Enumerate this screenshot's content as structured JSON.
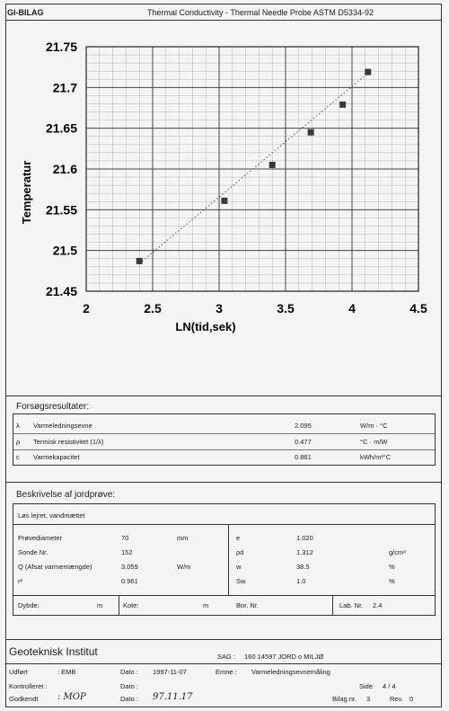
{
  "header": {
    "org": "GI-BILAG",
    "title": "Thermal Conductivity - Thermal Needle Probe ASTM D5334-92"
  },
  "chart_data": {
    "type": "scatter",
    "xlabel": "LN(tid,sek)",
    "ylabel": "Temperatur",
    "xlim": [
      2,
      4.5
    ],
    "ylim": [
      21.45,
      21.75
    ],
    "xticks": [
      "2",
      "2.5",
      "3",
      "3.5",
      "4",
      "4.5"
    ],
    "yticks": [
      "21.45",
      "21.5",
      "21.55",
      "21.6",
      "21.65",
      "21.7",
      "21.75"
    ],
    "grid": true,
    "points": [
      {
        "x": 2.4,
        "y": 21.487
      },
      {
        "x": 3.04,
        "y": 21.561
      },
      {
        "x": 3.4,
        "y": 21.605
      },
      {
        "x": 3.69,
        "y": 21.645
      },
      {
        "x": 3.93,
        "y": 21.679
      },
      {
        "x": 4.12,
        "y": 21.719
      }
    ],
    "trendline": {
      "x0": 2.4,
      "y0": 21.484,
      "x1": 4.13,
      "y1": 21.719,
      "style": "dotted"
    }
  },
  "results": {
    "title": "Forsøgsresultater:",
    "rows": [
      {
        "sym": "λ",
        "label": "Varmeledningsevne",
        "value": "2.095",
        "unit": "W/m · °C"
      },
      {
        "sym": "ρ",
        "label": "Termisk resistivitet (1/λ)",
        "value": "0.477",
        "unit": "°C · m/W"
      },
      {
        "sym": "c",
        "label": "Varmekapacitet",
        "value": "0.861",
        "unit": "kWh/m³°C"
      }
    ]
  },
  "sample": {
    "title": "Beskrivelse af jordprøve:",
    "description": "Løs lejret, vandmættet",
    "left_rows": [
      {
        "label": "Prøvediameter",
        "value": "70",
        "unit": "mm"
      },
      {
        "label": "Sonde Nr.",
        "value": "152",
        "unit": ""
      },
      {
        "label": "Q (Afsat varmemængde)",
        "value": "3.059",
        "unit": "W/m"
      },
      {
        "label": "r²",
        "value": "0.961",
        "unit": ""
      }
    ],
    "right_rows": [
      {
        "label": "e",
        "value": "1.020",
        "unit": ""
      },
      {
        "label": "ρd",
        "value": "1.312",
        "unit": "g/cm³"
      },
      {
        "label": "w",
        "value": "38.5",
        "unit": "%"
      },
      {
        "label": "Sw",
        "value": "1.0",
        "unit": "%"
      }
    ],
    "bottom": {
      "dybde_label": "Dybde:",
      "dybde_unit": "m",
      "kote_label": "Kote:",
      "kote_unit": "m",
      "bor_label": "Bor. Nr.",
      "lab_label": "Lab. Nr.",
      "lab_value": "2.4"
    }
  },
  "footer": {
    "institute": "Geoteknisk Institut",
    "sag_label": "SAG :",
    "sag_value": "160 14597 JORD o MILJØ",
    "udfort_label": "Udført",
    "udfort_value": ": EMB",
    "kontrolleret_label": "Kontrolleret :",
    "godkendt_label": "Godkendt",
    "godkendt_value": ": MOP",
    "dato1_label": "Dato :",
    "dato1_value": "1997-11-07",
    "dato2_label": "Dato :",
    "dato2_value": "",
    "dato3_label": "Dato :",
    "dato3_value": "97.11.17",
    "emne_label": "Emne :",
    "emne_value": "Varmeledningsevnemåling",
    "side_label": "Side",
    "side_value": "4 / 4",
    "bilag_label": "Bilag nr.",
    "bilag_value": "3",
    "rev_label": "Rev.",
    "rev_value": "0"
  }
}
